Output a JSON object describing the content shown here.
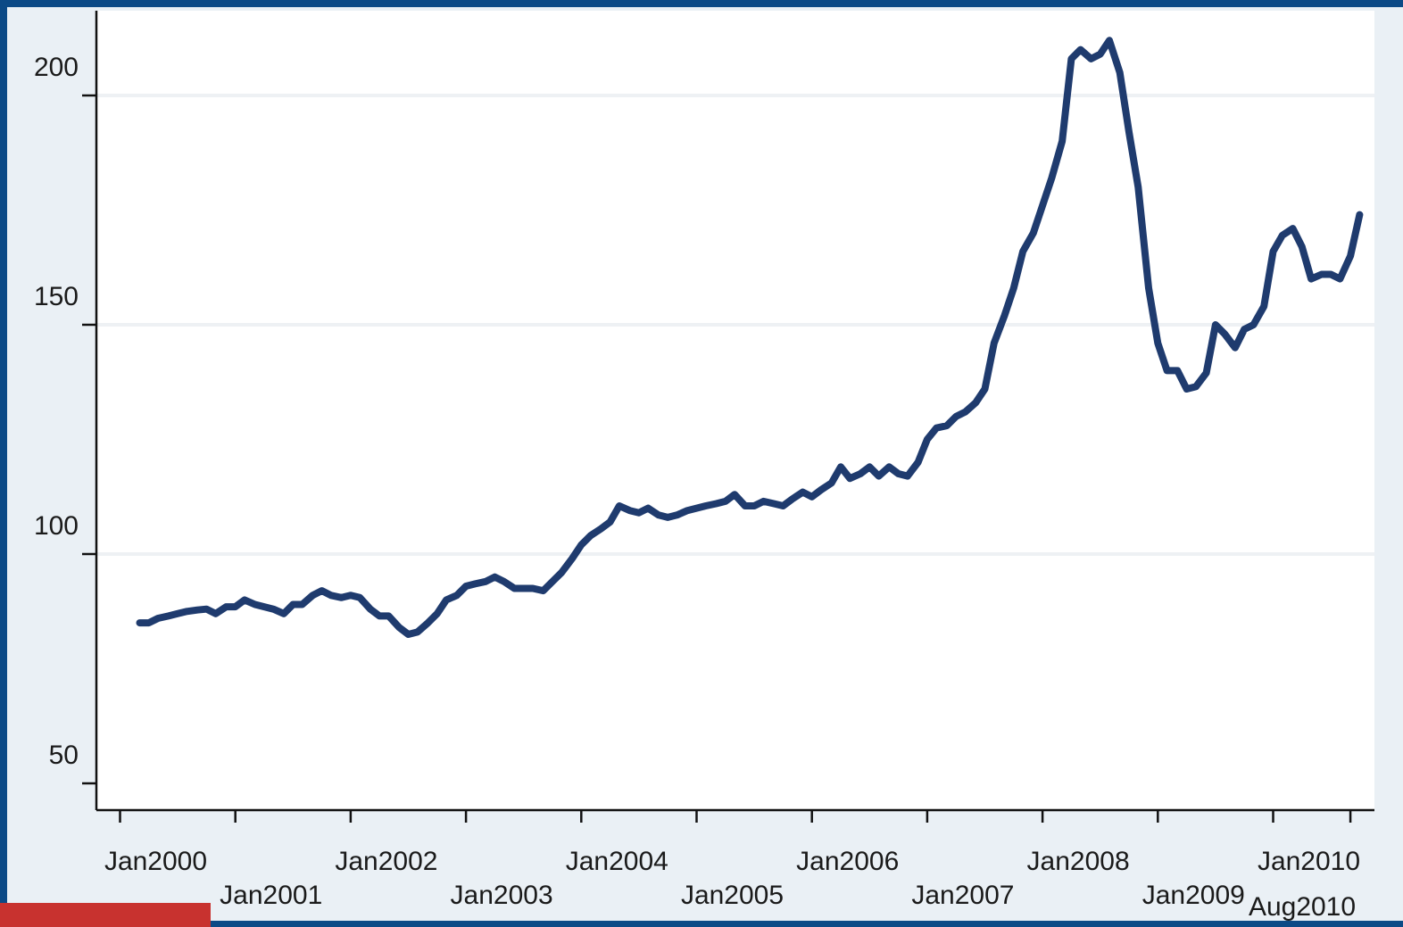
{
  "chart_data": {
    "type": "line",
    "title": "",
    "xlabel": "",
    "ylabel": "",
    "ylim": [
      44,
      221
    ],
    "yticks": [
      50,
      100,
      150,
      200
    ],
    "grid": true,
    "line_color": "#1f3b6e",
    "x_tick_labels": [
      {
        "label": "Jan2000",
        "x": 2000.0,
        "row": 0
      },
      {
        "label": "Jan2001",
        "x": 2001.0,
        "row": 1
      },
      {
        "label": "Jan2002",
        "x": 2002.0,
        "row": 0
      },
      {
        "label": "Jan2003",
        "x": 2003.0,
        "row": 1
      },
      {
        "label": "Jan2004",
        "x": 2004.0,
        "row": 0
      },
      {
        "label": "Jan2005",
        "x": 2005.0,
        "row": 1
      },
      {
        "label": "Jan2006",
        "x": 2006.0,
        "row": 0
      },
      {
        "label": "Jan2007",
        "x": 2007.0,
        "row": 1
      },
      {
        "label": "Jan2008",
        "x": 2008.0,
        "row": 0
      },
      {
        "label": "Jan2009",
        "x": 2009.0,
        "row": 1
      },
      {
        "label": "Jan2010",
        "x": 2010.0,
        "row": 0
      },
      {
        "label": "Aug2010",
        "x": 2010.67,
        "row": 1
      }
    ],
    "series": [
      {
        "points": [
          [
            2000.17,
            85
          ],
          [
            2000.25,
            85
          ],
          [
            2000.33,
            86
          ],
          [
            2000.42,
            86.5
          ],
          [
            2000.5,
            87
          ],
          [
            2000.58,
            87.5
          ],
          [
            2000.67,
            87.8
          ],
          [
            2000.75,
            88
          ],
          [
            2000.83,
            87
          ],
          [
            2000.92,
            88.5
          ],
          [
            2001.0,
            88.5
          ],
          [
            2001.08,
            90
          ],
          [
            2001.17,
            89
          ],
          [
            2001.25,
            88.5
          ],
          [
            2001.33,
            88
          ],
          [
            2001.42,
            87
          ],
          [
            2001.5,
            89
          ],
          [
            2001.58,
            89
          ],
          [
            2001.67,
            91
          ],
          [
            2001.75,
            92
          ],
          [
            2001.83,
            91
          ],
          [
            2001.92,
            90.5
          ],
          [
            2002.0,
            91
          ],
          [
            2002.08,
            90.5
          ],
          [
            2002.17,
            88
          ],
          [
            2002.25,
            86.5
          ],
          [
            2002.33,
            86.5
          ],
          [
            2002.42,
            84
          ],
          [
            2002.5,
            82.5
          ],
          [
            2002.58,
            83
          ],
          [
            2002.67,
            85
          ],
          [
            2002.75,
            87
          ],
          [
            2002.83,
            90
          ],
          [
            2002.92,
            91
          ],
          [
            2003.0,
            93
          ],
          [
            2003.08,
            93.5
          ],
          [
            2003.17,
            94
          ],
          [
            2003.25,
            95
          ],
          [
            2003.33,
            94
          ],
          [
            2003.42,
            92.5
          ],
          [
            2003.5,
            92.5
          ],
          [
            2003.58,
            92.5
          ],
          [
            2003.67,
            92
          ],
          [
            2003.75,
            94
          ],
          [
            2003.83,
            96
          ],
          [
            2003.92,
            99
          ],
          [
            2004.0,
            102
          ],
          [
            2004.08,
            104
          ],
          [
            2004.17,
            105.5
          ],
          [
            2004.25,
            107
          ],
          [
            2004.33,
            110.5
          ],
          [
            2004.42,
            109.5
          ],
          [
            2004.5,
            109
          ],
          [
            2004.58,
            110
          ],
          [
            2004.67,
            108.5
          ],
          [
            2004.75,
            108
          ],
          [
            2004.83,
            108.5
          ],
          [
            2004.92,
            109.5
          ],
          [
            2005.0,
            110
          ],
          [
            2005.08,
            110.5
          ],
          [
            2005.17,
            111
          ],
          [
            2005.25,
            111.5
          ],
          [
            2005.33,
            113
          ],
          [
            2005.42,
            110.5
          ],
          [
            2005.5,
            110.5
          ],
          [
            2005.58,
            111.5
          ],
          [
            2005.67,
            111
          ],
          [
            2005.75,
            110.5
          ],
          [
            2005.83,
            112
          ],
          [
            2005.92,
            113.5
          ],
          [
            2006.0,
            112.5
          ],
          [
            2006.08,
            114
          ],
          [
            2006.17,
            115.5
          ],
          [
            2006.25,
            119
          ],
          [
            2006.33,
            116.5
          ],
          [
            2006.42,
            117.5
          ],
          [
            2006.5,
            119
          ],
          [
            2006.58,
            117
          ],
          [
            2006.67,
            119
          ],
          [
            2006.75,
            117.5
          ],
          [
            2006.83,
            117
          ],
          [
            2006.92,
            120
          ],
          [
            2007.0,
            125
          ],
          [
            2007.08,
            127.5
          ],
          [
            2007.17,
            128
          ],
          [
            2007.25,
            130
          ],
          [
            2007.33,
            131
          ],
          [
            2007.42,
            133
          ],
          [
            2007.5,
            136
          ],
          [
            2007.58,
            146
          ],
          [
            2007.67,
            152
          ],
          [
            2007.75,
            158
          ],
          [
            2007.83,
            166
          ],
          [
            2007.92,
            170
          ],
          [
            2008.0,
            176
          ],
          [
            2008.08,
            182
          ],
          [
            2008.17,
            190
          ],
          [
            2008.25,
            208
          ],
          [
            2008.33,
            210
          ],
          [
            2008.42,
            208
          ],
          [
            2008.5,
            209
          ],
          [
            2008.58,
            212
          ],
          [
            2008.67,
            205
          ],
          [
            2008.75,
            192
          ],
          [
            2008.83,
            180
          ],
          [
            2008.92,
            158
          ],
          [
            2009.0,
            146
          ],
          [
            2009.08,
            140
          ],
          [
            2009.17,
            140
          ],
          [
            2009.25,
            136
          ],
          [
            2009.33,
            136.5
          ],
          [
            2009.42,
            139.5
          ],
          [
            2009.5,
            150
          ],
          [
            2009.58,
            148
          ],
          [
            2009.67,
            145
          ],
          [
            2009.75,
            149
          ],
          [
            2009.83,
            150
          ],
          [
            2009.92,
            154
          ],
          [
            2010.0,
            166
          ],
          [
            2010.08,
            169.5
          ],
          [
            2010.17,
            171
          ],
          [
            2010.25,
            167
          ],
          [
            2010.33,
            160
          ],
          [
            2010.42,
            161
          ],
          [
            2010.5,
            161
          ],
          [
            2010.58,
            160
          ],
          [
            2010.67,
            165
          ],
          [
            2010.75,
            174
          ]
        ]
      }
    ]
  }
}
